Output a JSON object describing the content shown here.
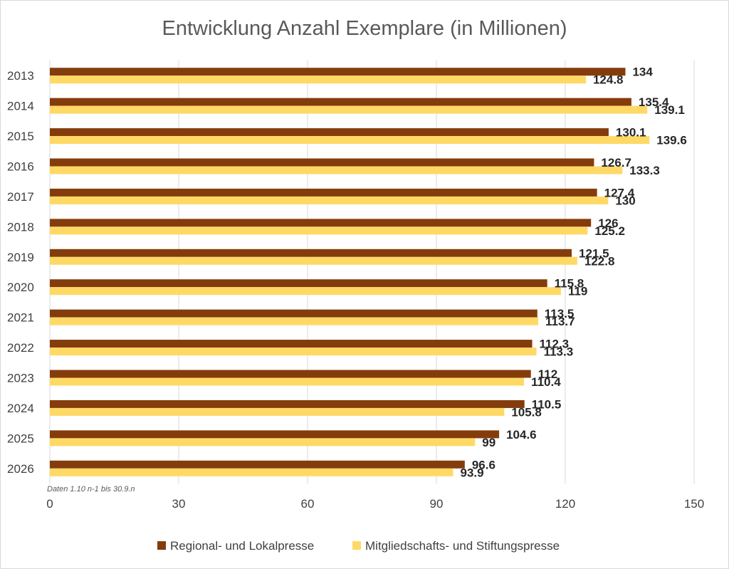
{
  "chart_data": {
    "type": "bar",
    "orientation": "horizontal",
    "title": "Entwicklung Anzahl Exemplare (in Millionen)",
    "categories": [
      "2013",
      "2014",
      "2015",
      "2016",
      "2017",
      "2018",
      "2019",
      "2020",
      "2021",
      "2022",
      "2023",
      "2024",
      "2025",
      "2026"
    ],
    "series": [
      {
        "name": "Regional- und Lokalpresse",
        "color": "#843c0c",
        "values": [
          134,
          135.4,
          130.1,
          126.7,
          127.4,
          126,
          121.5,
          115.8,
          113.5,
          112.3,
          112,
          110.5,
          104.6,
          96.6
        ]
      },
      {
        "name": "Mitgliedschafts- und Stiftungspresse",
        "color": "#ffd966",
        "values": [
          124.8,
          139.1,
          139.6,
          133.3,
          130,
          125.2,
          122.8,
          119,
          113.7,
          113.3,
          110.4,
          105.8,
          99,
          93.9
        ]
      }
    ],
    "xlim": [
      0,
      150
    ],
    "xticks": [
      0,
      30,
      60,
      90,
      120,
      150
    ],
    "grid": true,
    "legend": "bottom",
    "note": "Daten 1.10 n-1 bis 30.9.n"
  }
}
